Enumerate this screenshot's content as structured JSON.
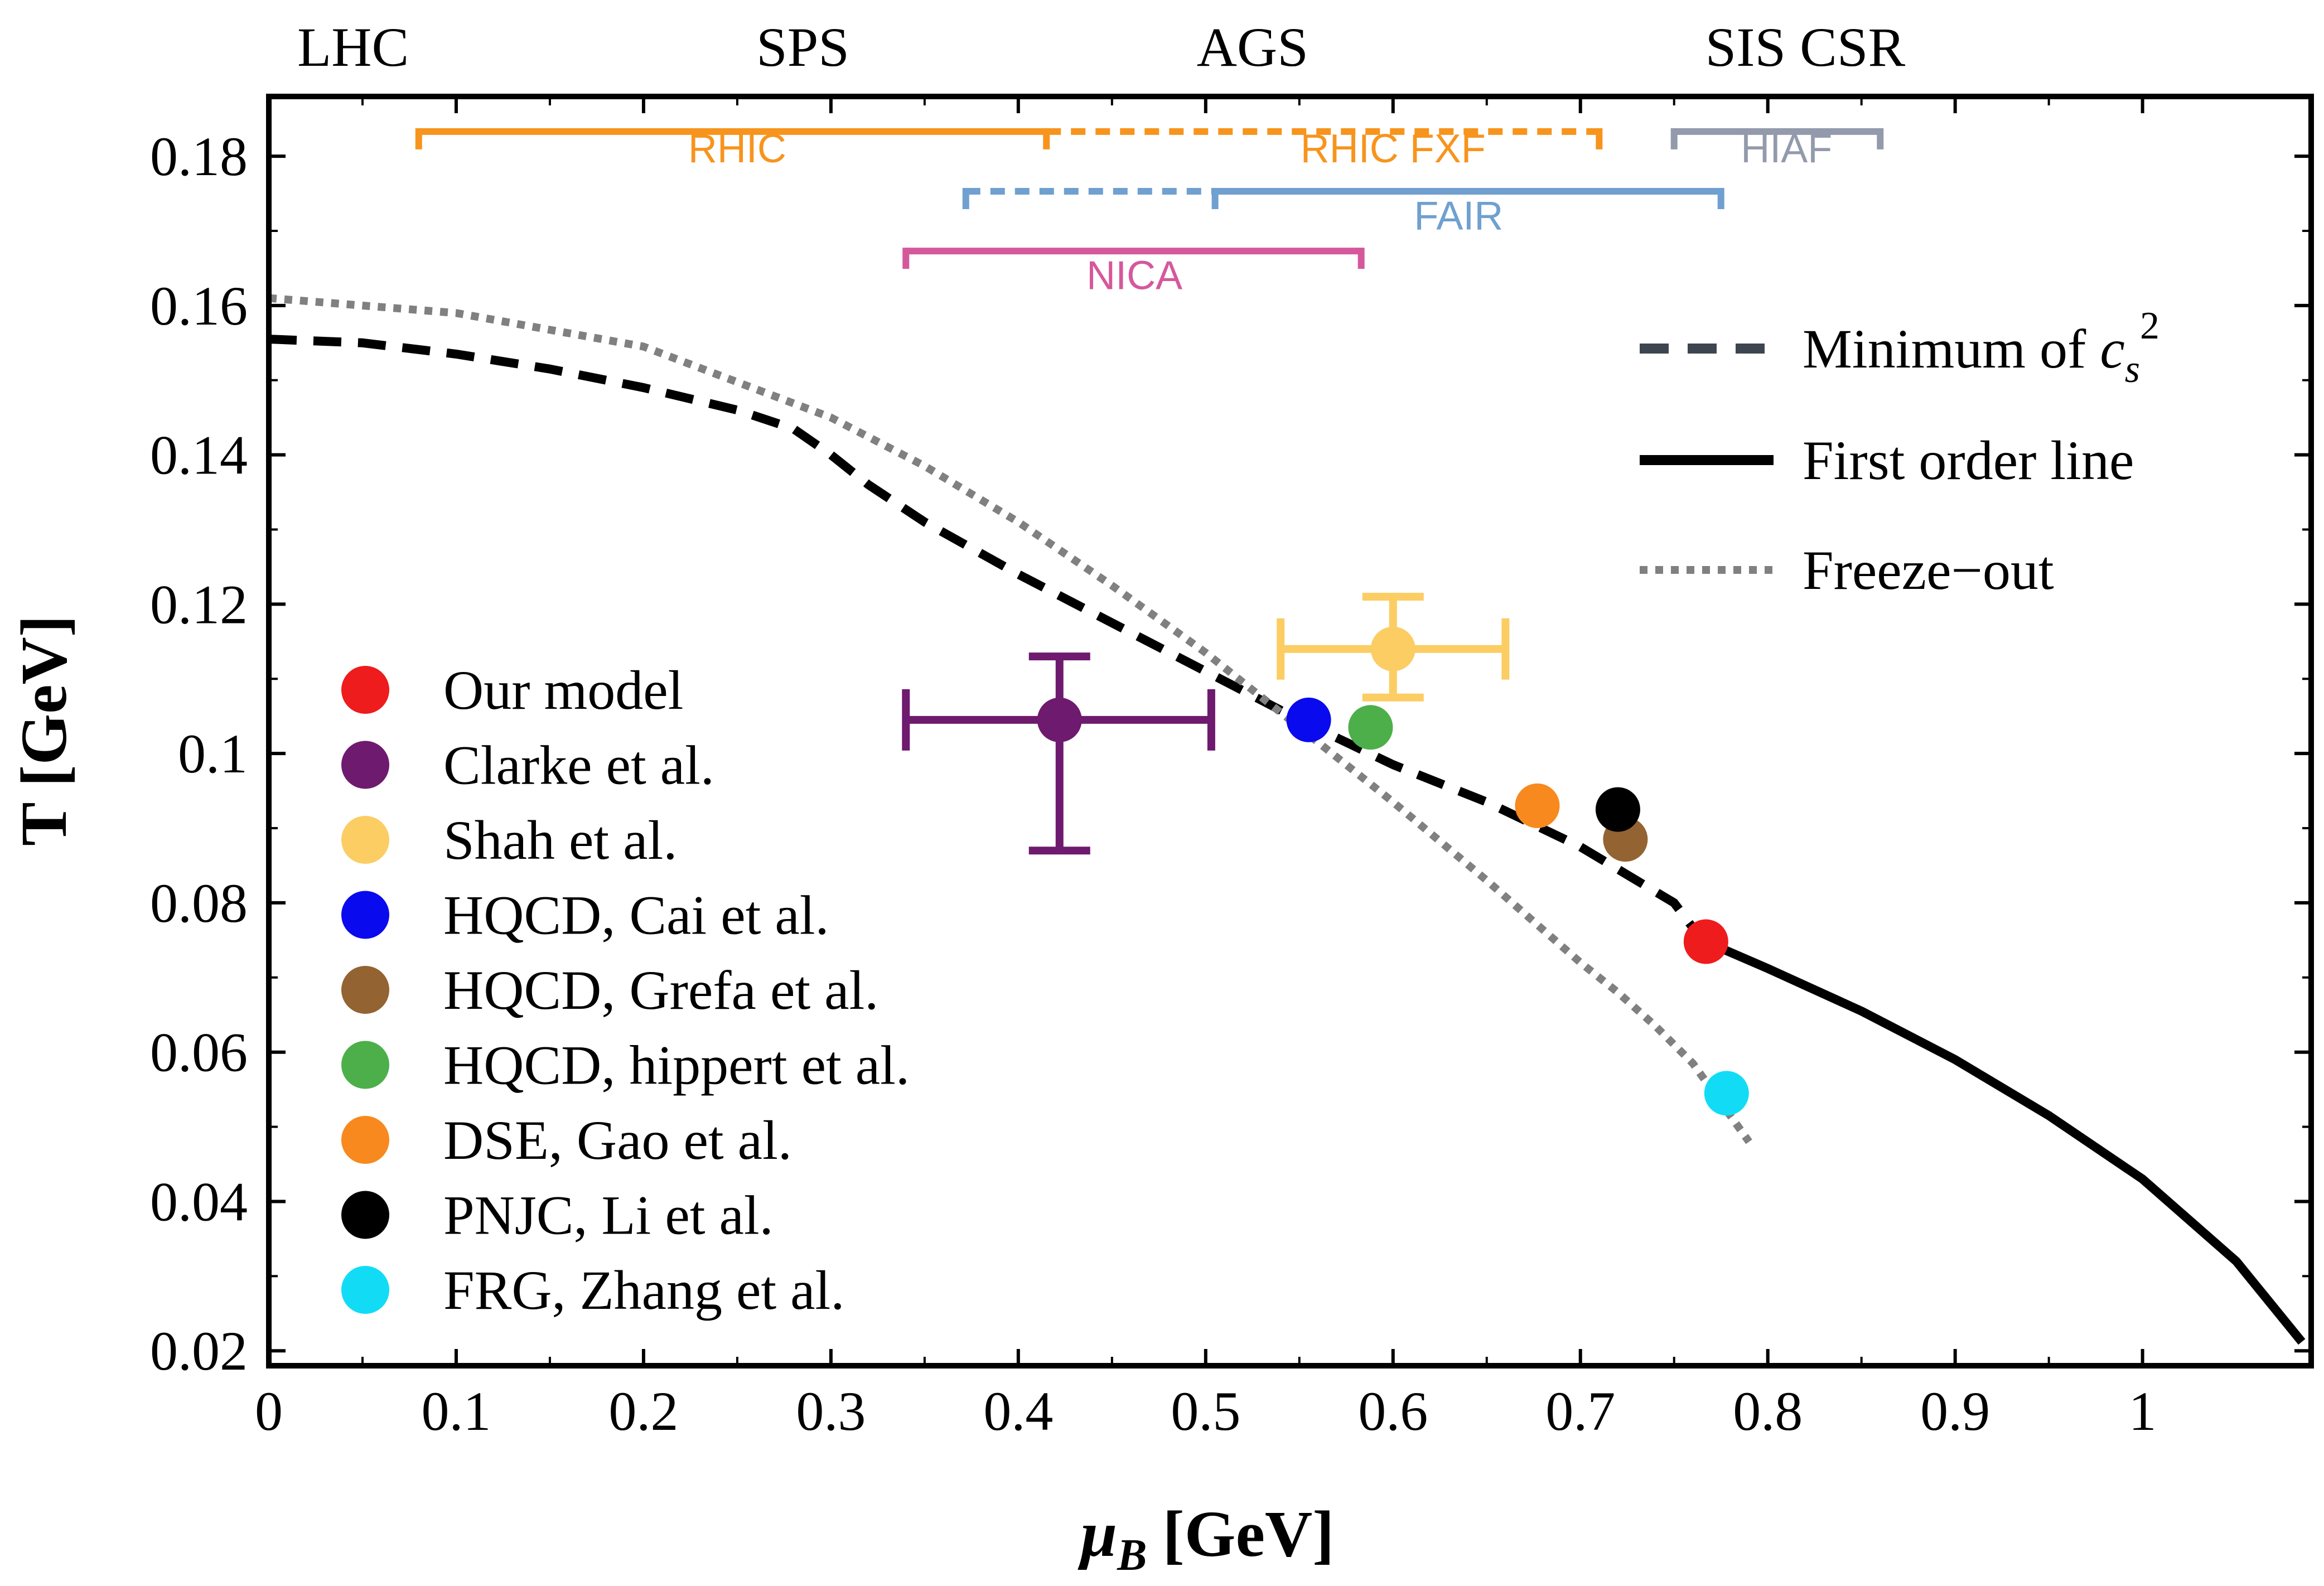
{
  "chart_data": {
    "type": "scatter",
    "xlabel": "[GeV]",
    "xlabel_symbol": "μ",
    "xlabel_subscript": "B",
    "ylabel": "T [GeV]",
    "xlim": [
      0,
      1.09
    ],
    "ylim": [
      0.018,
      0.188
    ],
    "x_ticks": [
      0,
      0.1,
      0.2,
      0.3,
      0.4,
      0.5,
      0.6,
      0.7,
      0.8,
      0.9,
      1
    ],
    "x_tick_labels": [
      "0",
      "0.1",
      "0.2",
      "0.3",
      "0.4",
      "0.5",
      "0.6",
      "0.7",
      "0.8",
      "0.9",
      "1"
    ],
    "y_ticks": [
      0.02,
      0.04,
      0.06,
      0.08,
      0.1,
      0.12,
      0.14,
      0.16,
      0.18
    ],
    "y_tick_labels": [
      "0.02",
      "0.04",
      "0.06",
      "0.08",
      "0.1",
      "0.12",
      "0.14",
      "0.16",
      "0.18"
    ],
    "grid": false,
    "facilities": [
      {
        "label": "LHC",
        "x": 0.045
      },
      {
        "label": "SPS",
        "x": 0.285
      },
      {
        "label": "AGS",
        "x": 0.525
      },
      {
        "label": "SIS CSR",
        "x": 0.82
      }
    ],
    "experiment_ranges": [
      {
        "label": "RHIC",
        "color": "#f7941d",
        "y": 0.1833,
        "x0": 0.08,
        "x1": 0.415,
        "style": "solid",
        "label_x": 0.25,
        "label_y": 0.1792
      },
      {
        "label": "RHIC FXF",
        "color": "#f7941d",
        "y": 0.1833,
        "x0": 0.415,
        "x1": 0.71,
        "style": "dashed",
        "label_x": 0.6,
        "label_y": 0.1792
      },
      {
        "label": "HIAF",
        "color": "#939aac",
        "y": 0.1833,
        "x0": 0.75,
        "x1": 0.86,
        "style": "solid",
        "label_x": 0.81,
        "label_y": 0.1792
      },
      {
        "label": "",
        "color": "#6fa0cf",
        "y": 0.1753,
        "x0": 0.372,
        "x1": 0.505,
        "style": "dashed"
      },
      {
        "label": "FAIR",
        "color": "#6fa0cf",
        "y": 0.1753,
        "x0": 0.505,
        "x1": 0.775,
        "style": "solid",
        "label_x": 0.635,
        "label_y": 0.1702
      },
      {
        "label": "NICA",
        "color": "#d5589c",
        "y": 0.1673,
        "x0": 0.34,
        "x1": 0.583,
        "style": "solid",
        "label_x": 0.462,
        "label_y": 0.1622
      }
    ],
    "series": [
      {
        "name": "Minimum of c",
        "name_subscript": "s",
        "name_superscript": "2",
        "style": "dashed",
        "color": "#000000",
        "legend_color": "#3d4550",
        "x": [
          0,
          0.05,
          0.1,
          0.15,
          0.2,
          0.25,
          0.28,
          0.3,
          0.32,
          0.35,
          0.4,
          0.45,
          0.5,
          0.55,
          0.6,
          0.65,
          0.7,
          0.75,
          0.765
        ],
        "y": [
          0.1555,
          0.155,
          0.1535,
          0.1515,
          0.149,
          0.146,
          0.1435,
          0.14,
          0.136,
          0.131,
          0.124,
          0.1175,
          0.111,
          0.1045,
          0.0985,
          0.0935,
          0.0875,
          0.08,
          0.075
        ]
      },
      {
        "name": "First order line",
        "style": "solid",
        "color": "#000000",
        "x": [
          0.765,
          0.8,
          0.85,
          0.9,
          0.95,
          1.0,
          1.05,
          1.085
        ],
        "y": [
          0.075,
          0.0712,
          0.0655,
          0.059,
          0.0515,
          0.043,
          0.032,
          0.0212
        ]
      },
      {
        "name": "Freeze−out",
        "style": "dotted",
        "color": "#808080",
        "x": [
          0,
          0.1,
          0.2,
          0.3,
          0.35,
          0.4,
          0.45,
          0.5,
          0.55,
          0.6,
          0.65,
          0.7,
          0.72,
          0.74,
          0.76,
          0.78,
          0.79
        ],
        "y": [
          0.161,
          0.159,
          0.1545,
          0.145,
          0.1385,
          0.131,
          0.1225,
          0.1135,
          0.1035,
          0.0935,
          0.083,
          0.072,
          0.068,
          0.0635,
          0.0585,
          0.0515,
          0.048
        ]
      }
    ],
    "points": [
      {
        "name": "Our model",
        "color": "#ee1c1c",
        "x": 0.767,
        "y": 0.0748
      },
      {
        "name": "Clarke et al.",
        "color": "#6e1a6e",
        "x": 0.422,
        "y": 0.1045,
        "xerr": [
          0.34,
          0.503
        ],
        "yerr": [
          0.087,
          0.113
        ]
      },
      {
        "name": "Shah et al.",
        "color": "#fbcd63",
        "x": 0.6,
        "y": 0.114,
        "xerr": [
          0.54,
          0.66
        ],
        "yerr": [
          0.1075,
          0.121
        ]
      },
      {
        "name": "HQCD, Cai et al.",
        "color": "#0a0aee",
        "x": 0.555,
        "y": 0.1045
      },
      {
        "name": "HQCD, Grefa et al.",
        "color": "#946332",
        "x": 0.724,
        "y": 0.0885
      },
      {
        "name": "HQCD, hippert et al.",
        "color": "#4daf4a",
        "x": 0.588,
        "y": 0.1035
      },
      {
        "name": "DSE, Gao et al.",
        "color": "#f7891e",
        "x": 0.677,
        "y": 0.093
      },
      {
        "name": "PNJC, Li et al.",
        "color": "#000000",
        "x": 0.72,
        "y": 0.0925
      },
      {
        "name": "FRG, Zhang et al.",
        "color": "#12dcf5",
        "x": 0.778,
        "y": 0.0545
      }
    ],
    "legend_lines_placement": "top-right",
    "legend_points_placement": "bottom-left"
  }
}
